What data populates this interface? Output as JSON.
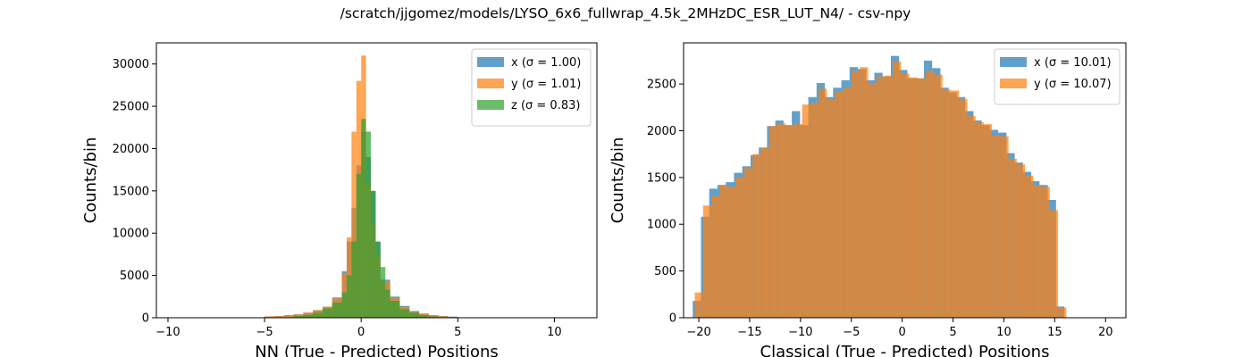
{
  "chart_data": {
    "suptitle": "/scratch/jjgomez/models/LYSO_6x6_fullwrap_4.5k_2MHzDC_ESR_LUT_N4/ - csv-npy",
    "panels": [
      {
        "type": "histogram",
        "xlabel": "NN (True - Predicted) Positions",
        "ylabel": "Counts/bin",
        "xlim": [
          -10.6,
          12.2
        ],
        "ylim": [
          0,
          32500
        ],
        "xticks": [
          -10,
          -5,
          0,
          5,
          10
        ],
        "xtick_labels": [
          "−10",
          "−5",
          "0",
          "5",
          "10"
        ],
        "yticks": [
          0,
          5000,
          10000,
          15000,
          20000,
          25000,
          30000
        ],
        "ytick_labels": [
          "0",
          "5000",
          "10000",
          "15000",
          "20000",
          "25000",
          "30000"
        ],
        "legend_position": "upper right",
        "series": [
          {
            "name": "x",
            "legend": "x (σ = 1.00)",
            "color": "#1f77b4",
            "bins": [
              [
                -5.0,
                -4.5,
                150
              ],
              [
                -4.5,
                -4.0,
                200
              ],
              [
                -4.0,
                -3.5,
                300
              ],
              [
                -3.5,
                -3.0,
                400
              ],
              [
                -3.0,
                -2.5,
                600
              ],
              [
                -2.5,
                -2.0,
                900
              ],
              [
                -2.0,
                -1.5,
                1300
              ],
              [
                -1.5,
                -1.0,
                2400
              ],
              [
                -1.0,
                -0.75,
                5500
              ],
              [
                -0.75,
                -0.5,
                9000
              ],
              [
                -0.5,
                -0.25,
                13000
              ],
              [
                -0.25,
                0.0,
                18000
              ],
              [
                0.0,
                0.25,
                22000
              ],
              [
                0.25,
                0.5,
                19000
              ],
              [
                0.5,
                0.75,
                15000
              ],
              [
                0.75,
                1.0,
                9000
              ],
              [
                1.0,
                1.5,
                4500
              ],
              [
                1.5,
                2.0,
                2500
              ],
              [
                2.0,
                2.5,
                1400
              ],
              [
                2.5,
                3.0,
                800
              ],
              [
                3.0,
                3.5,
                500
              ],
              [
                3.5,
                4.0,
                300
              ],
              [
                4.0,
                4.5,
                200
              ],
              [
                4.5,
                5.0,
                120
              ]
            ]
          },
          {
            "name": "y",
            "legend": "y (σ = 1.01)",
            "color": "#ff7f0e",
            "bins": [
              [
                -5.0,
                -4.5,
                150
              ],
              [
                -4.5,
                -4.0,
                200
              ],
              [
                -4.0,
                -3.5,
                300
              ],
              [
                -3.5,
                -3.0,
                400
              ],
              [
                -3.0,
                -2.5,
                600
              ],
              [
                -2.5,
                -2.0,
                900
              ],
              [
                -2.0,
                -1.5,
                1300
              ],
              [
                -1.5,
                -1.0,
                2300
              ],
              [
                -1.0,
                -0.75,
                5200
              ],
              [
                -0.75,
                -0.5,
                9500
              ],
              [
                -0.5,
                -0.25,
                22000
              ],
              [
                -0.25,
                0.0,
                28000
              ],
              [
                0.0,
                0.25,
                31000
              ],
              [
                0.25,
                0.5,
                16000
              ],
              [
                0.5,
                0.75,
                11000
              ],
              [
                0.75,
                1.0,
                7500
              ],
              [
                1.0,
                1.5,
                4200
              ],
              [
                1.5,
                2.0,
                2300
              ],
              [
                2.0,
                2.5,
                1300
              ],
              [
                2.5,
                3.0,
                700
              ],
              [
                3.0,
                3.5,
                450
              ],
              [
                3.5,
                4.0,
                300
              ],
              [
                4.0,
                4.5,
                200
              ],
              [
                4.5,
                5.0,
                120
              ]
            ]
          },
          {
            "name": "z",
            "legend": "z (σ = 0.83)",
            "color": "#2ca02c",
            "bins": [
              [
                -3.5,
                -3.0,
                200
              ],
              [
                -3.0,
                -2.5,
                350
              ],
              [
                -2.5,
                -2.0,
                600
              ],
              [
                -2.0,
                -1.5,
                1100
              ],
              [
                -1.5,
                -1.0,
                1800
              ],
              [
                -1.0,
                -0.75,
                3000
              ],
              [
                -0.75,
                -0.5,
                5000
              ],
              [
                -0.5,
                -0.25,
                9000
              ],
              [
                -0.25,
                0.0,
                17000
              ],
              [
                0.0,
                0.25,
                23500
              ],
              [
                0.25,
                0.5,
                22000
              ],
              [
                0.5,
                0.75,
                15000
              ],
              [
                0.75,
                1.0,
                9000
              ],
              [
                1.0,
                1.25,
                6000
              ],
              [
                1.25,
                1.5,
                3300
              ],
              [
                1.5,
                2.0,
                2000
              ],
              [
                2.0,
                2.5,
                1000
              ],
              [
                2.5,
                3.0,
                600
              ],
              [
                3.0,
                3.5,
                300
              ],
              [
                3.5,
                4.0,
                150
              ]
            ]
          }
        ]
      },
      {
        "type": "histogram",
        "xlabel": "Classical (True - Predicted) Positions",
        "ylabel": "Counts/bin",
        "xlim": [
          -21.5,
          22.0
        ],
        "ylim": [
          0,
          2940
        ],
        "xticks": [
          -20,
          -15,
          -10,
          -5,
          0,
          5,
          10,
          15,
          20
        ],
        "xtick_labels": [
          "−20",
          "−15",
          "−10",
          "−5",
          "0",
          "5",
          "10",
          "15",
          "20"
        ],
        "yticks": [
          0,
          500,
          1000,
          1500,
          2000,
          2500
        ],
        "ytick_labels": [
          "0",
          "500",
          "1000",
          "1500",
          "2000",
          "2500"
        ],
        "legend_position": "upper right",
        "series": [
          {
            "name": "x",
            "legend": "x (σ = 10.01)",
            "color": "#1f77b4",
            "start": -20.6,
            "width": 0.812,
            "values": [
              180,
              1080,
              1380,
              1420,
              1450,
              1550,
              1620,
              1740,
              1820,
              2050,
              2110,
              2060,
              2210,
              2060,
              2360,
              2510,
              2360,
              2460,
              2540,
              2680,
              2660,
              2540,
              2620,
              2580,
              2800,
              2650,
              2560,
              2560,
              2750,
              2670,
              2460,
              2410,
              2360,
              2210,
              2110,
              2060,
              2010,
              1980,
              1760,
              1660,
              1560,
              1460,
              1420,
              1260,
              120
            ]
          },
          {
            "name": "y",
            "legend": "y (σ = 10.07)",
            "color": "#ff7f0e",
            "start": -20.4,
            "width": 0.812,
            "values": [
              270,
              1200,
              1300,
              1420,
              1400,
              1500,
              1600,
              1750,
              1820,
              2050,
              2080,
              2060,
              2070,
              2280,
              2300,
              2450,
              2340,
              2420,
              2460,
              2640,
              2680,
              2510,
              2580,
              2590,
              2740,
              2610,
              2570,
              2560,
              2640,
              2600,
              2440,
              2430,
              2340,
              2160,
              2090,
              2070,
              1950,
              1940,
              1700,
              1640,
              1520,
              1420,
              1400,
              1150,
              110
            ]
          }
        ]
      }
    ]
  }
}
